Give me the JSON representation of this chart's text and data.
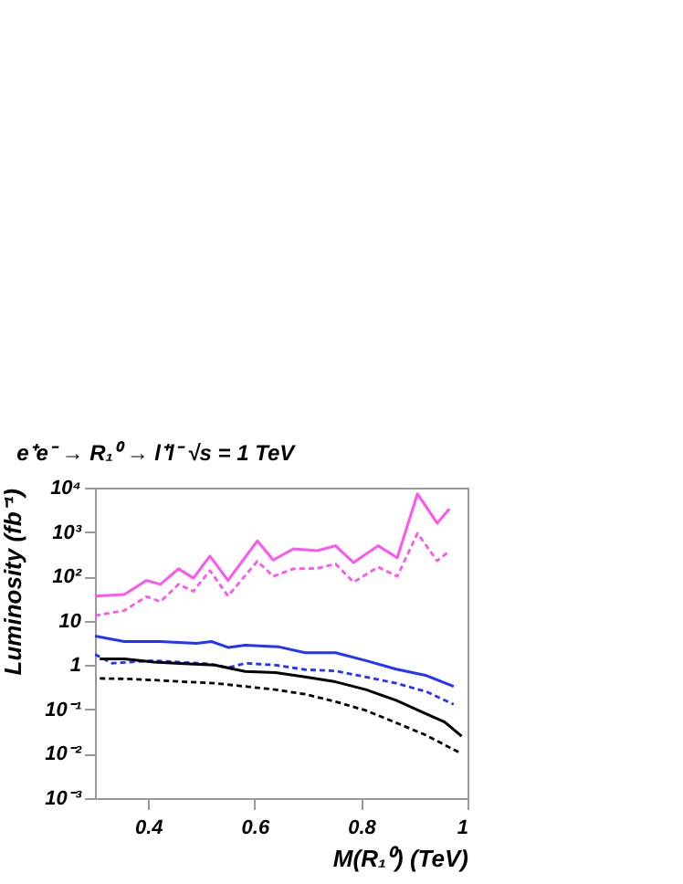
{
  "chart_data": {
    "type": "line",
    "title": "e⁺e⁻ → R₁⁰ → l⁺l⁻     √s = 1 TeV",
    "xlabel": "M(R₁⁰) (TeV)",
    "ylabel": "Luminosity (fb⁻¹)",
    "log": "y",
    "xlim": [
      0.3,
      1
    ],
    "ylim": [
      0.001,
      10000
    ],
    "xticks": [
      0.4,
      0.6,
      0.8,
      1
    ],
    "yticks": [
      {
        "value": 0.001,
        "label": "10⁻³"
      },
      {
        "value": 0.01,
        "label": "10⁻²"
      },
      {
        "value": 0.1,
        "label": "10⁻¹"
      },
      1,
      10,
      {
        "value": 100,
        "label": "10²"
      },
      {
        "value": 1000,
        "label": "10³"
      },
      {
        "value": 10000,
        "label": "10⁴"
      }
    ],
    "marker": "none",
    "series": [
      {
        "color": "#ff55ee",
        "line_style": "solid",
        "x": [
          0.3,
          0.355,
          0.397,
          0.423,
          0.457,
          0.485,
          0.516,
          0.55,
          0.605,
          0.635,
          0.673,
          0.718,
          0.752,
          0.786,
          0.832,
          0.868,
          0.906,
          0.943,
          0.966
        ],
        "values": [
          36,
          39,
          81,
          66,
          148,
          91,
          288,
          81,
          631,
          234,
          417,
          380,
          490,
          204,
          490,
          263,
          7240,
          1585,
          3311
        ]
      },
      {
        "color": "#ff55ee",
        "line_style": "dashed",
        "x": [
          0.3,
          0.355,
          0.397,
          0.423,
          0.457,
          0.485,
          0.516,
          0.55,
          0.605,
          0.635,
          0.673,
          0.718,
          0.752,
          0.786,
          0.832,
          0.868,
          0.906,
          0.943,
          0.966
        ],
        "values": [
          13,
          17,
          35,
          27,
          66,
          46,
          135,
          36,
          219,
          100,
          148,
          151,
          191,
          74,
          162,
          100,
          933,
          224,
          372
        ]
      },
      {
        "color": "#2233ff",
        "line_style": "solid",
        "x": [
          0.3,
          0.355,
          0.423,
          0.491,
          0.519,
          0.55,
          0.582,
          0.644,
          0.695,
          0.752,
          0.809,
          0.866,
          0.923,
          0.974
        ],
        "values": [
          4.5,
          3.4,
          3.4,
          3.1,
          3.4,
          2.5,
          2.8,
          2.6,
          1.9,
          1.9,
          1.26,
          0.81,
          0.58,
          0.33
        ]
      },
      {
        "color": "#2233ff",
        "line_style": "dashed",
        "x": [
          0.3,
          0.332,
          0.411,
          0.514,
          0.55,
          0.582,
          0.639,
          0.695,
          0.752,
          0.809,
          0.866,
          0.923,
          0.974
        ],
        "values": [
          1.74,
          1.1,
          1.26,
          1.07,
          0.87,
          1.1,
          1.0,
          0.79,
          0.74,
          0.54,
          0.39,
          0.25,
          0.13
        ]
      },
      {
        "color": "#000000",
        "line_style": "solid",
        "x": [
          0.309,
          0.355,
          0.411,
          0.468,
          0.525,
          0.582,
          0.639,
          0.695,
          0.752,
          0.809,
          0.866,
          0.923,
          0.957,
          0.989
        ],
        "values": [
          1.38,
          1.38,
          1.17,
          1.07,
          1.0,
          0.72,
          0.68,
          0.54,
          0.42,
          0.28,
          0.16,
          0.079,
          0.052,
          0.025
        ]
      },
      {
        "color": "#000000",
        "line_style": "dashed",
        "x": [
          0.309,
          0.355,
          0.411,
          0.468,
          0.525,
          0.582,
          0.639,
          0.695,
          0.752,
          0.809,
          0.866,
          0.923,
          0.989
        ],
        "values": [
          0.5,
          0.49,
          0.46,
          0.42,
          0.39,
          0.33,
          0.28,
          0.22,
          0.15,
          0.095,
          0.05,
          0.026,
          0.01
        ]
      }
    ]
  }
}
